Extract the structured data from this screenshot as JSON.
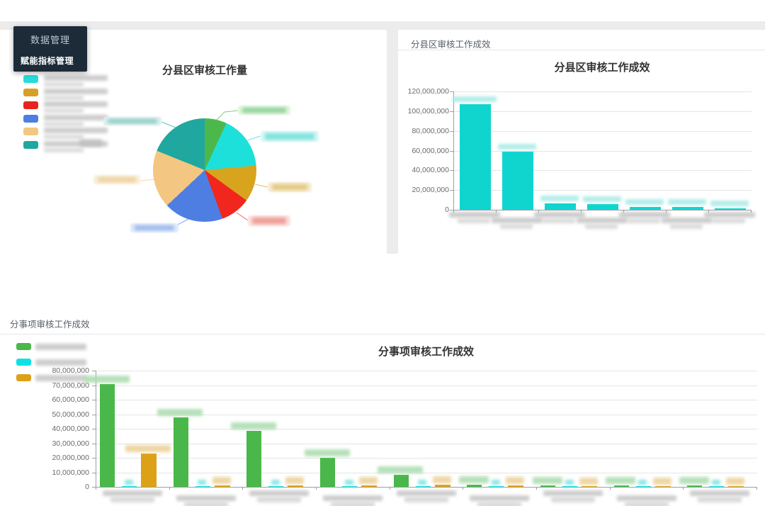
{
  "menu": {
    "title": "数据管理",
    "items": [
      {
        "label": "赋能指标管理",
        "active": true
      }
    ],
    "background": "#1d2b38"
  },
  "panels": {
    "district_workload": {
      "title": "分县区审核工作量"
    },
    "district_effect": {
      "header": "分县区审核工作成效",
      "title": "分县区审核工作成效"
    },
    "item_effect": {
      "header": "分事项审核工作成效",
      "title": "分事项审核工作成效"
    }
  },
  "colors": {
    "top_band": "#ececec",
    "panel_bg": "#ffffff",
    "axis_line": "#9aa0a6",
    "gridline": "#e5e5e5",
    "district_bar": "#10d5cf"
  },
  "chart_data": [
    {
      "type": "pie",
      "title": "分县区审核工作量",
      "legend_position": "left",
      "labels_redacted": true,
      "slices": [
        {
          "name": "slice-green",
          "value_pct": 6.9,
          "color": "#4cb84c",
          "tint_outer": "#e3f5e0",
          "tint_inner": "#8fd29a"
        },
        {
          "name": "slice-cyan",
          "value_pct": 16.7,
          "color": "#1ee0da",
          "tint_outer": "#dcf7f5",
          "tint_inner": "#7fe3dd"
        },
        {
          "name": "slice-gold",
          "value_pct": 11.4,
          "color": "#d8a41e",
          "tint_outer": "#f7eed8",
          "tint_inner": "#e3c77e"
        },
        {
          "name": "slice-red",
          "value_pct": 9.4,
          "color": "#f1261d",
          "tint_outer": "#fbe3e1",
          "tint_inner": "#ef9d97"
        },
        {
          "name": "slice-blue",
          "value_pct": 18.6,
          "color": "#4e7ee2",
          "tint_outer": "#e3ebfa",
          "tint_inner": "#9db9ea"
        },
        {
          "name": "slice-orange",
          "value_pct": 18.1,
          "color": "#f3c781",
          "tint_outer": "#faf0dd",
          "tint_inner": "#eed2a0"
        },
        {
          "name": "slice-teal",
          "value_pct": 18.9,
          "color": "#1fa7a0",
          "tint_outer": "#ddf0ee",
          "tint_inner": "#8fccc8"
        }
      ],
      "legend": [
        {
          "color": "#25dbdb",
          "label_redacted": true
        },
        {
          "color": "#d8a023",
          "label_redacted": true
        },
        {
          "color": "#e8231d",
          "label_redacted": true
        },
        {
          "color": "#4e7ee2",
          "label_redacted": true
        },
        {
          "color": "#f3c781",
          "label_redacted": true
        },
        {
          "color": "#1fa7a0",
          "label_redacted": true
        }
      ]
    },
    {
      "type": "bar",
      "title": "分县区审核工作成效",
      "ylim": [
        0,
        120000000
      ],
      "yticks": [
        "120,000,000",
        "100,000,000",
        "80,000,000",
        "60,000,000",
        "40,000,000",
        "20,000,000",
        "0"
      ],
      "bar_color": "#10d5cf",
      "values": [
        107000000,
        59000000,
        6500000,
        5800000,
        2700000,
        2600000,
        1500000
      ],
      "value_labels_redacted": true,
      "categories_redacted_count": 7,
      "grid": true,
      "legend_position": "none"
    },
    {
      "type": "grouped_bar",
      "title": "分事项审核工作成效",
      "ylim": [
        0,
        80000000
      ],
      "yticks": [
        "80,000,000",
        "70,000,000",
        "60,000,000",
        "50,000,000",
        "40,000,000",
        "30,000,000",
        "20,000,000",
        "10,000,000",
        "0"
      ],
      "series": [
        {
          "name": "series-green",
          "color": "#49b749",
          "label_redacted": true,
          "values": [
            70500000,
            48000000,
            38500000,
            20000000,
            8500000,
            1500000,
            1200000,
            1000000,
            800000
          ],
          "value_tint": "#a9dcae"
        },
        {
          "name": "series-cyan",
          "color": "#0de2e2",
          "label_redacted": true,
          "values": [
            300000,
            250000,
            200000,
            250000,
            200000,
            300000,
            250000,
            300000,
            250000
          ],
          "value_tint": "#74e3e0"
        },
        {
          "name": "series-gold",
          "color": "#dda118",
          "label_redacted": true,
          "values": [
            23000000,
            1200000,
            1000000,
            900000,
            1300000,
            800000,
            700000,
            600000,
            500000
          ],
          "value_tint": "#ecd094"
        }
      ],
      "categories_redacted_count": 9,
      "grid": true,
      "legend_position": "top-left"
    }
  ]
}
